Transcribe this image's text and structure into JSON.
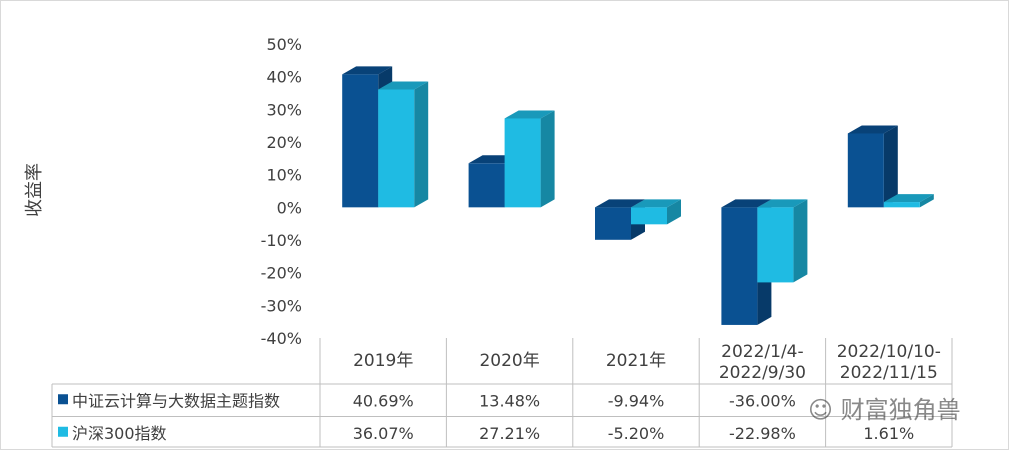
{
  "chart_data": {
    "type": "bar",
    "ylabel": "收益率",
    "ylim": [
      -0.4,
      0.5
    ],
    "y_ticks": [
      "50%",
      "40%",
      "30%",
      "20%",
      "10%",
      "0%",
      "-10%",
      "-20%",
      "-30%",
      "-40%"
    ],
    "categories": [
      [
        "2019年"
      ],
      [
        "2020年"
      ],
      [
        "2021年"
      ],
      [
        "2022/1/4-",
        "2022/9/30"
      ],
      [
        "2022/10/10-",
        "2022/11/15"
      ]
    ],
    "series": [
      {
        "name": "中证云计算与大数据主题指数",
        "color": "#0a5192",
        "values": [
          0.4069,
          0.1348,
          -0.0994,
          -0.36,
          0.2262
        ],
        "labels": [
          "40.69%",
          "13.48%",
          "-9.94%",
          "-36.00%",
          ""
        ]
      },
      {
        "name": "沪深300指数",
        "color": "#1fbbe3",
        "values": [
          0.3607,
          0.2721,
          -0.052,
          -0.2298,
          0.0161
        ],
        "labels": [
          "36.07%",
          "27.21%",
          "-5.20%",
          "-22.98%",
          "1.61%"
        ]
      }
    ],
    "data_table": true,
    "view": "3d"
  },
  "watermark": {
    "icon": "wechat-icon",
    "text": "财富独角兽"
  }
}
